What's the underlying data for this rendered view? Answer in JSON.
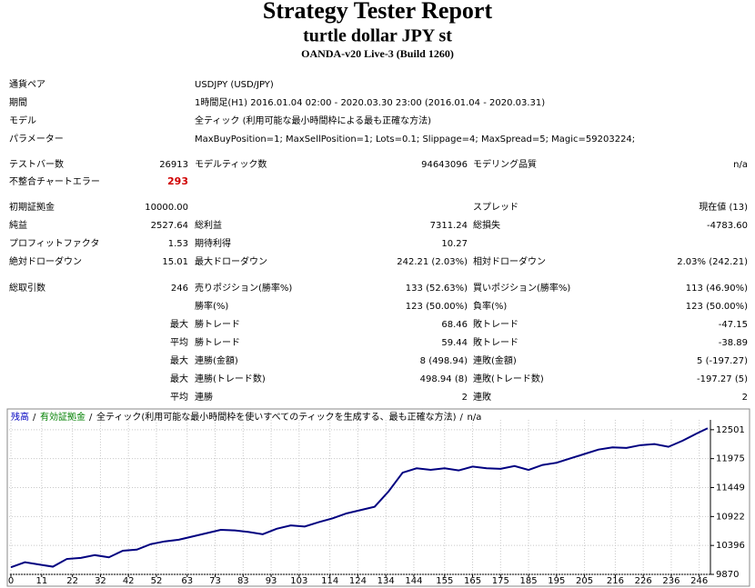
{
  "header": {
    "title": "Strategy Tester Report",
    "subtitle": "turtle dollar JPY st",
    "server": "OANDA-v20 Live-3 (Build 1260)"
  },
  "table": {
    "rows": [
      [
        "通貨ペア",
        null,
        "USDJPY (USD/JPY)"
      ],
      [
        "期間",
        null,
        "1時間足(H1) 2016.01.04 02:00 - 2020.03.30 23:00 (2016.01.04 - 2020.03.31)"
      ],
      [
        "モデル",
        null,
        "全ティック (利用可能な最小時間枠による最も正確な方法)"
      ],
      [
        "パラメーター",
        null,
        "MaxBuyPosition=1; MaxSellPosition=1; Lots=0.1; Slippage=4; MaxSpread=5; Magic=59203224;"
      ],
      [
        "テストバー数",
        "26913",
        "モデルティック数",
        "94643096",
        "モデリング品質",
        "n/a"
      ],
      [
        "不整合チャートエラー",
        "293"
      ],
      [
        "初期証拠金",
        "10000.00",
        null,
        null,
        "スプレッド",
        "現在値 (13)"
      ],
      [
        "純益",
        "2527.64",
        "総利益",
        "7311.24",
        "総損失",
        "-4783.60"
      ],
      [
        "プロフィットファクタ",
        "1.53",
        "期待利得",
        "10.27"
      ],
      [
        "絶対ドローダウン",
        "15.01",
        "最大ドローダウン",
        "242.21 (2.03%)",
        "相対ドローダウン",
        "2.03% (242.21)"
      ],
      [
        "総取引数",
        "246",
        "売りポジション(勝率%)",
        "133 (52.63%)",
        "買いポジション(勝率%)",
        "113 (46.90%)"
      ],
      [
        null,
        null,
        "勝率(%)",
        "123 (50.00%)",
        "負率(%)",
        "123 (50.00%)"
      ],
      [
        null,
        "最大",
        "勝トレード",
        "68.46",
        "敗トレード",
        "-47.15"
      ],
      [
        null,
        "平均",
        "勝トレード",
        "59.44",
        "敗トレード",
        "-38.89"
      ],
      [
        null,
        "最大",
        "連勝(金額)",
        "8 (498.94)",
        "連敗(金額)",
        "5 (-197.27)"
      ],
      [
        null,
        "最大",
        "連勝(トレード数)",
        "498.94 (8)",
        "連敗(トレード数)",
        "-197.27 (5)"
      ],
      [
        null,
        "平均",
        "連勝",
        "2",
        "連敗",
        "2"
      ]
    ]
  },
  "chart": {
    "type": "line",
    "legend": [
      {
        "text": "残高",
        "color": "#0000c0"
      },
      {
        "text": "有効証拠金",
        "color": "#008000"
      },
      {
        "text": "全ティック(利用可能な最小時間枠を使いすべてのティックを生成する、最も正確な方法)",
        "color": "#000000"
      },
      {
        "text": "n/a",
        "color": "#000000"
      }
    ],
    "x": [
      0,
      5,
      10,
      15,
      20,
      25,
      30,
      35,
      40,
      45,
      50,
      55,
      60,
      65,
      70,
      75,
      80,
      85,
      90,
      95,
      100,
      105,
      110,
      115,
      120,
      125,
      130,
      135,
      140,
      145,
      150,
      155,
      160,
      165,
      170,
      175,
      180,
      185,
      190,
      195,
      200,
      205,
      210,
      215,
      220,
      225,
      230,
      235,
      240,
      245,
      249
    ],
    "series": [
      {
        "color": "#000080",
        "values": [
          10000,
          10090,
          10050,
          10010,
          10150,
          10170,
          10220,
          10180,
          10300,
          10320,
          10420,
          10470,
          10500,
          10560,
          10620,
          10680,
          10670,
          10640,
          10600,
          10700,
          10760,
          10740,
          10820,
          10890,
          10980,
          11040,
          11100,
          11380,
          11720,
          11800,
          11770,
          11800,
          11760,
          11830,
          11800,
          11790,
          11840,
          11770,
          11860,
          11900,
          11980,
          12060,
          12140,
          12180,
          12170,
          12220,
          12240,
          12190,
          12300,
          12430,
          12527.64
        ]
      }
    ],
    "xlim": [
      0,
      250
    ],
    "ylim": [
      9870,
      12680
    ],
    "xticks": [
      0,
      11,
      22,
      32,
      42,
      52,
      63,
      73,
      83,
      93,
      103,
      114,
      124,
      134,
      144,
      155,
      165,
      175,
      185,
      195,
      205,
      216,
      226,
      236,
      246
    ],
    "yticks": [
      9870,
      10396,
      10922,
      11449,
      11975,
      12501
    ],
    "grid": true
  }
}
